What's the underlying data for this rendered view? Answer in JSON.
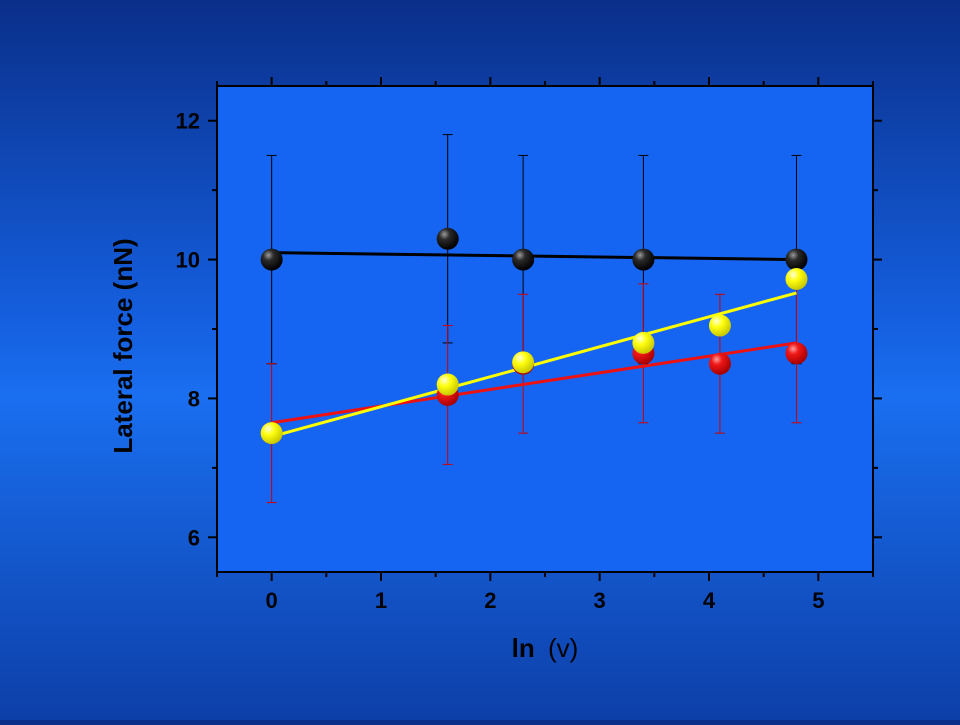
{
  "colors": {
    "plot_background": "#1565f2",
    "axis": "#000000",
    "series_black": "#000000",
    "series_red": "#ee1111",
    "series_yellow": "#ffff00",
    "error_bar": "#cc0000"
  },
  "chart_data": {
    "type": "scatter",
    "title": "",
    "xlabel_main": "ln",
    "xlabel_var": "(v)",
    "ylabel": "Lateral force (nN)",
    "xlim": [
      -0.5,
      5.5
    ],
    "ylim": [
      5.5,
      12.5
    ],
    "x_ticks": [
      0,
      1,
      2,
      3,
      4,
      5
    ],
    "x_tick_labels": [
      "0",
      "1",
      "2",
      "3",
      "4",
      "5"
    ],
    "y_ticks": [
      6,
      8,
      10,
      12
    ],
    "y_tick_labels": [
      "6",
      "8",
      "10",
      "12"
    ],
    "grid": false,
    "series": [
      {
        "color": "#000000",
        "points": [
          {
            "x": 0,
            "y": 10.0,
            "err": 1.5
          },
          {
            "x": 1.61,
            "y": 10.3,
            "err": 1.5
          },
          {
            "x": 2.3,
            "y": 10.0,
            "err": 1.5
          },
          {
            "x": 3.4,
            "y": 10.0,
            "err": 1.5
          },
          {
            "x": 4.8,
            "y": 10.0,
            "err": 1.5
          }
        ],
        "fit": {
          "x1": 0,
          "y1": 10.1,
          "x2": 4.8,
          "y2": 10.0
        }
      },
      {
        "color": "#ee1111",
        "points": [
          {
            "x": 0,
            "y": 7.5,
            "err": 1.0
          },
          {
            "x": 1.61,
            "y": 8.05,
            "err": 1.0
          },
          {
            "x": 2.3,
            "y": 8.5,
            "err": 1.0
          },
          {
            "x": 3.4,
            "y": 8.65,
            "err": 1.0
          },
          {
            "x": 4.1,
            "y": 8.5,
            "err": 1.0
          },
          {
            "x": 4.8,
            "y": 8.65,
            "err": 1.0
          }
        ],
        "fit": {
          "x1": 0,
          "y1": 7.65,
          "x2": 4.8,
          "y2": 8.8
        }
      },
      {
        "color": "#ffff00",
        "points": [
          {
            "x": 0,
            "y": 7.5
          },
          {
            "x": 1.61,
            "y": 8.2
          },
          {
            "x": 2.3,
            "y": 8.52
          },
          {
            "x": 3.4,
            "y": 8.8
          },
          {
            "x": 4.1,
            "y": 9.05
          },
          {
            "x": 4.8,
            "y": 9.72
          }
        ],
        "fit": {
          "x1": 0,
          "y1": 7.45,
          "x2": 4.8,
          "y2": 9.52
        }
      }
    ]
  }
}
